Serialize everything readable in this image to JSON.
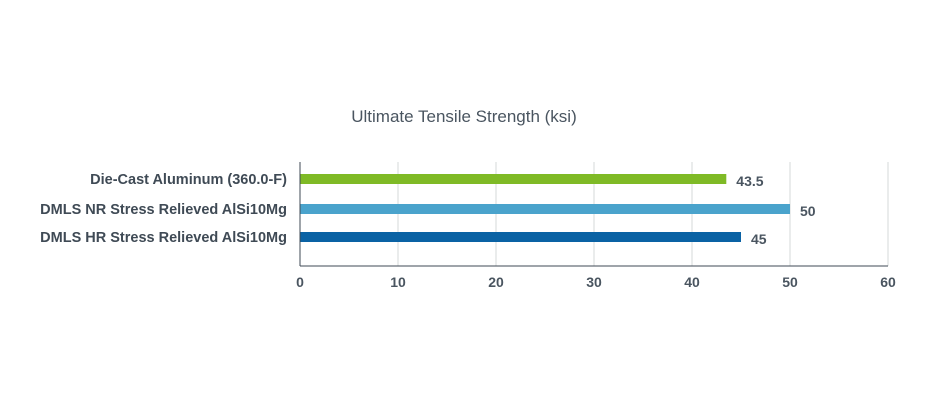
{
  "chart_data": {
    "type": "bar",
    "orientation": "horizontal",
    "title": "Ultimate Tensile Strength (ksi)",
    "xlabel": "",
    "ylabel": "",
    "categories": [
      "Die-Cast Aluminum (360.0-F)",
      "DMLS NR Stress Relieved AlSi10Mg",
      "DMLS HR Stress Relieved AlSi10Mg"
    ],
    "values": [
      43.5,
      50,
      45
    ],
    "value_labels": [
      "43.5",
      "50",
      "45"
    ],
    "bar_colors": [
      "#7fba26",
      "#4aa3cc",
      "#0a62a4"
    ],
    "xlim": [
      0,
      60
    ],
    "xticks": [
      0,
      10,
      20,
      30,
      40,
      50,
      60
    ],
    "grid": true,
    "legend": "none"
  }
}
